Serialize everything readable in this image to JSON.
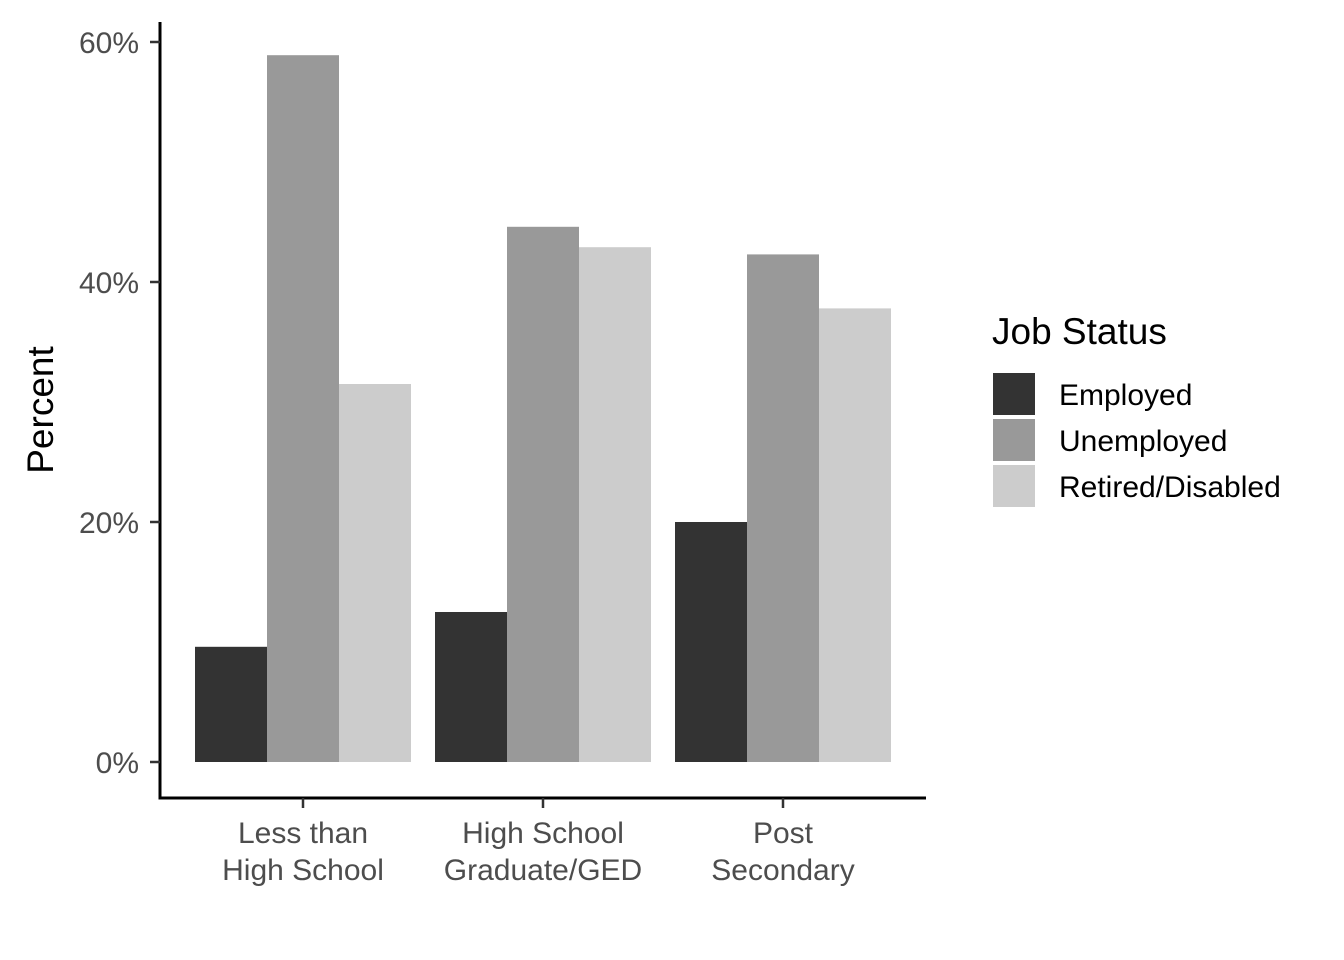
{
  "chart_data": {
    "type": "bar",
    "ylabel": "Percent",
    "xlabel": "",
    "ylim": [
      0,
      0.6
    ],
    "yticks": [
      0,
      0.2,
      0.4,
      0.6
    ],
    "ytick_labels": [
      "0%",
      "20%",
      "40%",
      "60%"
    ],
    "categories": [
      [
        "Less than",
        "High School"
      ],
      [
        "High School",
        "Graduate/GED"
      ],
      [
        "Post",
        "Secondary"
      ]
    ],
    "series": [
      {
        "name": "Employed",
        "color": "#333333",
        "values": [
          0.096,
          0.125,
          0.2
        ]
      },
      {
        "name": "Unemployed",
        "color": "#999999",
        "values": [
          0.589,
          0.446,
          0.423
        ]
      },
      {
        "name": "Retired/Disabled",
        "color": "#cccccc",
        "values": [
          0.315,
          0.429,
          0.378
        ]
      }
    ],
    "legend": {
      "title": "Job Status",
      "position": "right"
    },
    "grid": false
  }
}
